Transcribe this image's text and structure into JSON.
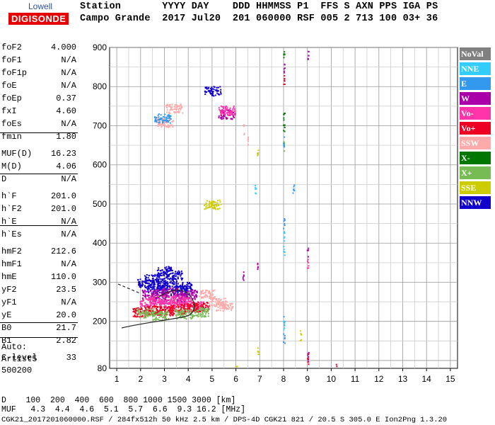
{
  "logo": {
    "line1": "Lowell",
    "line2": "DIGISONDE"
  },
  "header": {
    "row1": "Station       YYYY DAY    DDD HHMMSS P1  FFS S AXN PPS IGA PS",
    "row2": "Campo Grande  2017 Jul20  201 060000 RSF 005 2 713 100 03+ 36"
  },
  "params": [
    {
      "name": "foF2",
      "value": "4.000"
    },
    {
      "name": "foF1",
      "value": "N/A"
    },
    {
      "name": "foF1p",
      "value": "N/A"
    },
    {
      "name": "foE",
      "value": "N/A"
    },
    {
      "name": "foEp",
      "value": "0.37"
    },
    {
      "name": "fxI",
      "value": "4.60"
    },
    {
      "name": "foEs",
      "value": "N/A"
    },
    {
      "name": "fmin",
      "value": "1.80"
    },
    {
      "name": "MUF(D)",
      "value": "16.23"
    },
    {
      "name": "M(D)",
      "value": "4.06"
    },
    {
      "name": "D",
      "value": "N/A"
    },
    {
      "name": "h`F",
      "value": "201.0"
    },
    {
      "name": "h`F2",
      "value": "201.0"
    },
    {
      "name": "h`E",
      "value": "N/A"
    },
    {
      "name": "h`Es",
      "value": "N/A"
    },
    {
      "name": "hmF2",
      "value": "212.6"
    },
    {
      "name": "hmF1",
      "value": "N/A"
    },
    {
      "name": "hmE",
      "value": "110.0"
    },
    {
      "name": "yF2",
      "value": "23.5"
    },
    {
      "name": "yF1",
      "value": "N/A"
    },
    {
      "name": "yE",
      "value": "20.0"
    },
    {
      "name": "B0",
      "value": "21.7"
    },
    {
      "name": "B1",
      "value": "2.82"
    },
    {
      "name": "C-level",
      "value": "33"
    }
  ],
  "auto": {
    "line1": "Auto:",
    "line2": "Artist5",
    "line3": "500200"
  },
  "legend": [
    {
      "label": "NoVal",
      "color": "#808080"
    },
    {
      "label": "NNE",
      "color": "#33ccff"
    },
    {
      "label": "E",
      "color": "#3399ee"
    },
    {
      "label": "W",
      "color": "#aa00aa"
    },
    {
      "label": "Vo-",
      "color": "#ff33aa"
    },
    {
      "label": "Vo+",
      "color": "#ee0022"
    },
    {
      "label": "SSW",
      "color": "#ffaaaa"
    },
    {
      "label": "X-",
      "color": "#007700"
    },
    {
      "label": "X+",
      "color": "#77bb55"
    },
    {
      "label": "SSE",
      "color": "#cccc00"
    },
    {
      "label": "NNW",
      "color": "#1100cc"
    }
  ],
  "bottom": {
    "row1": "D    100  200  400  600  800 1000 1500 3000 [km]",
    "row2": "MUF   4.3  4.4  4.6  5.1  5.7  6.6  9.3 16.2 [MHz]",
    "row3": "CGK21_2017201060000.RSF / 284fx512h 50 kHz 2.5 km / DPS-4D CGK21 821 / 20.5 S 305.0 E Ion2Png 1.3.20"
  },
  "chart_data": {
    "type": "scatter",
    "title": "",
    "xlabel": "",
    "ylabel": "",
    "xlim": [
      0.7,
      15.3
    ],
    "ylim": [
      80,
      900
    ],
    "x_ticks": [
      1,
      2,
      3,
      4,
      5,
      6,
      7,
      8,
      9,
      10,
      11,
      12,
      13,
      14,
      15
    ],
    "y_ticks": [
      80,
      200,
      300,
      400,
      500,
      600,
      700,
      800,
      900
    ],
    "grid": true,
    "legend_position": "right",
    "series": [
      {
        "name": "NNW",
        "points": [
          [
            2.8,
            290
          ],
          [
            3.2,
            300
          ],
          [
            3.6,
            280
          ],
          [
            2.5,
            310
          ],
          [
            3.0,
            330
          ],
          [
            2.2,
            300
          ],
          [
            3.4,
            320
          ],
          [
            3.8,
            290
          ],
          [
            2.6,
            285
          ],
          [
            5.0,
            790
          ]
        ]
      },
      {
        "name": "W",
        "points": [
          [
            2.4,
            270
          ],
          [
            2.8,
            265
          ],
          [
            3.2,
            275
          ],
          [
            3.6,
            260
          ],
          [
            4.0,
            270
          ],
          [
            6.3,
            320
          ],
          [
            6.9,
            340
          ],
          [
            8.0,
            850
          ],
          [
            9.0,
            880
          ],
          [
            9.0,
            380
          ],
          [
            9.0,
            110
          ],
          [
            5.6,
            730
          ]
        ]
      },
      {
        "name": "Vo-",
        "points": [
          [
            2.3,
            250
          ],
          [
            2.7,
            255
          ],
          [
            3.1,
            245
          ],
          [
            3.5,
            255
          ],
          [
            3.9,
            250
          ],
          [
            4.3,
            240
          ],
          [
            9.0,
            350
          ],
          [
            5.6,
            740
          ]
        ]
      },
      {
        "name": "Vo+",
        "points": [
          [
            2.0,
            225
          ],
          [
            2.5,
            230
          ],
          [
            3.0,
            228
          ],
          [
            3.5,
            232
          ],
          [
            4.0,
            235
          ],
          [
            4.5,
            238
          ],
          [
            8.0,
            820
          ],
          [
            9.0,
            105
          ],
          [
            10.2,
            80
          ]
        ]
      },
      {
        "name": "SSW",
        "points": [
          [
            4.8,
            270
          ],
          [
            5.2,
            250
          ],
          [
            5.5,
            240
          ],
          [
            6.3,
            690
          ],
          [
            6.5,
            660
          ],
          [
            3.0,
            710
          ],
          [
            3.4,
            745
          ]
        ]
      },
      {
        "name": "X-",
        "points": [
          [
            8.0,
            880
          ],
          [
            8.0,
            720
          ],
          [
            8.0,
            700
          ]
        ]
      },
      {
        "name": "X+",
        "points": [
          [
            2.2,
            222
          ],
          [
            2.8,
            215
          ],
          [
            3.8,
            220
          ],
          [
            4.5,
            225
          ],
          [
            8.0,
            650
          ]
        ]
      },
      {
        "name": "SSE",
        "points": [
          [
            5.0,
            500
          ],
          [
            6.9,
            630
          ],
          [
            6.9,
            120
          ],
          [
            8.7,
            165
          ],
          [
            6.0,
            80
          ]
        ]
      },
      {
        "name": "E",
        "points": [
          [
            8.0,
            450
          ],
          [
            8.0,
            200
          ],
          [
            8.0,
            160
          ],
          [
            8.4,
            540
          ],
          [
            8.0,
            660
          ],
          [
            2.9,
            720
          ]
        ]
      },
      {
        "name": "NNE",
        "points": [
          [
            8.0,
            420
          ],
          [
            8.0,
            190
          ],
          [
            8.0,
            380
          ],
          [
            6.8,
            540
          ]
        ]
      }
    ]
  }
}
